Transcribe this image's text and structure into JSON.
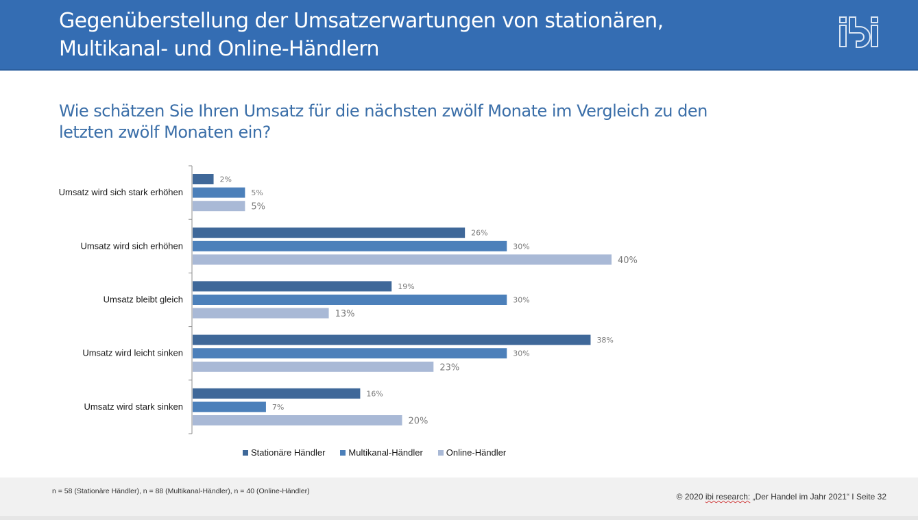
{
  "header": {
    "title": "Gegenüberstellung der Umsatzerwartungen von stationären,\nMultikanal- und Online-Händlern",
    "logo_text": "ibi"
  },
  "question": "Wie schätzen Sie Ihren Umsatz für die nächsten zwölf Monate im Vergleich zu den\nletzten zwölf Monaten ein?",
  "chart_data": {
    "type": "bar",
    "orientation": "horizontal",
    "title": "Wie schätzen Sie Ihren Umsatz für die nächsten zwölf Monate im Vergleich zu den letzten zwölf Monaten ein?",
    "xlabel": "",
    "ylabel": "",
    "xlim": [
      0,
      40
    ],
    "grid": false,
    "legend_position": "bottom",
    "value_suffix": "%",
    "categories": [
      "Umsatz wird sich stark erhöhen",
      "Umsatz wird sich erhöhen",
      "Umsatz bleibt gleich",
      "Umsatz wird leicht sinken",
      "Umsatz wird stark sinken"
    ],
    "series": [
      {
        "name": "Stationäre Händler",
        "color": "#3f6899",
        "values": [
          2,
          26,
          19,
          38,
          16
        ]
      },
      {
        "name": "Multikanal-Händler",
        "color": "#4c80ba",
        "values": [
          5,
          30,
          30,
          30,
          7
        ]
      },
      {
        "name": "Online-Händler",
        "color": "#a9b9d6",
        "values": [
          5,
          40,
          13,
          23,
          20
        ]
      }
    ]
  },
  "footer": {
    "sample_note": "n = 58 (Stationäre Händler), n = 88 (Multikanal-Händler), n = 40 (Online-Händler)",
    "copyright_prefix": "© 2020 ",
    "copyright_brand": "ibi research:",
    "copyright_suffix": " „Der Handel im Jahr 2021“ I Seite 32"
  }
}
